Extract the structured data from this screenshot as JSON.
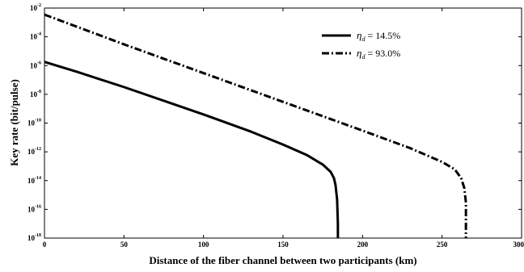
{
  "chart_data": {
    "type": "line",
    "xlabel": "Distance of the fiber channel between two participants (km)",
    "ylabel": "Key rate (bit/pulse)",
    "xlim": [
      0,
      300
    ],
    "ylim_exponents": [
      -18,
      -2
    ],
    "y_scale": "log",
    "x_ticks": [
      "0",
      "50",
      "100",
      "150",
      "200",
      "250",
      "300"
    ],
    "y_tick_base": "10",
    "y_tick_exponents": [
      "-2",
      "-4",
      "-6",
      "-8",
      "-10",
      "-12",
      "-14",
      "-16",
      "-18"
    ],
    "grid": false,
    "legend_position": "top-right",
    "series": [
      {
        "name_symbol": "η",
        "name_subscript": "d",
        "name_value": " = 14.5%",
        "style": "solid",
        "color": "#000000",
        "points": [
          {
            "x": 0,
            "y": 1.8e-06
          },
          {
            "x": 20,
            "y": 3.8e-07
          },
          {
            "x": 50,
            "y": 3.2e-08
          },
          {
            "x": 100,
            "y": 4e-10
          },
          {
            "x": 130,
            "y": 2.5e-11
          },
          {
            "x": 150,
            "y": 3.2e-12
          },
          {
            "x": 165,
            "y": 6e-13
          },
          {
            "x": 175,
            "y": 1.3e-13
          },
          {
            "x": 180,
            "y": 4e-14
          },
          {
            "x": 182,
            "y": 1.5e-14
          },
          {
            "x": 183,
            "y": 5e-15
          },
          {
            "x": 184,
            "y": 5e-16
          },
          {
            "x": 184.5,
            "y": 1e-17
          },
          {
            "x": 184.5,
            "y": 1e-18
          }
        ]
      },
      {
        "name_symbol": "η",
        "name_subscript": "d",
        "name_value": " = 93.0%",
        "style": "dashdot",
        "color": "#000000",
        "points": [
          {
            "x": 0,
            "y": 0.0035
          },
          {
            "x": 50,
            "y": 3e-05
          },
          {
            "x": 100,
            "y": 3e-07
          },
          {
            "x": 150,
            "y": 3e-09
          },
          {
            "x": 200,
            "y": 3e-11
          },
          {
            "x": 230,
            "y": 1.8e-12
          },
          {
            "x": 250,
            "y": 2e-13
          },
          {
            "x": 258,
            "y": 6e-14
          },
          {
            "x": 262,
            "y": 1.5e-14
          },
          {
            "x": 264,
            "y": 3e-15
          },
          {
            "x": 265,
            "y": 3e-16
          },
          {
            "x": 265,
            "y": 1e-18
          }
        ]
      }
    ]
  }
}
